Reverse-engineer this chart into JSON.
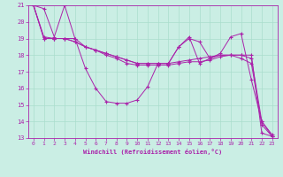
{
  "xlabel": "Windchill (Refroidissement éolien,°C)",
  "xlim": [
    -0.5,
    23.5
  ],
  "ylim": [
    13,
    21
  ],
  "yticks": [
    13,
    14,
    15,
    16,
    17,
    18,
    19,
    20,
    21
  ],
  "xticks": [
    0,
    1,
    2,
    3,
    4,
    5,
    6,
    7,
    8,
    9,
    10,
    11,
    12,
    13,
    14,
    15,
    16,
    17,
    18,
    19,
    20,
    21,
    22,
    23
  ],
  "bg_color": "#caeee4",
  "line_color": "#aa22aa",
  "grid_color": "#aaddcc",
  "series": [
    [
      21.0,
      20.8,
      19.1,
      21.0,
      19.0,
      17.2,
      16.0,
      15.2,
      15.1,
      15.1,
      15.3,
      16.1,
      17.5,
      17.5,
      18.5,
      19.1,
      17.5,
      17.8,
      18.1,
      19.1,
      19.3,
      16.5,
      14.0,
      13.2
    ],
    [
      21.0,
      19.1,
      19.0,
      19.0,
      19.0,
      18.5,
      18.3,
      18.0,
      17.8,
      17.5,
      17.4,
      17.4,
      17.4,
      17.4,
      17.5,
      17.6,
      17.6,
      17.7,
      17.9,
      18.0,
      18.0,
      18.0,
      13.3,
      13.1
    ],
    [
      21.0,
      19.0,
      19.0,
      19.0,
      18.8,
      18.5,
      18.3,
      18.1,
      17.9,
      17.7,
      17.5,
      17.5,
      17.5,
      17.5,
      17.6,
      17.7,
      17.8,
      17.9,
      18.0,
      18.0,
      18.0,
      17.8,
      14.0,
      13.1
    ],
    [
      21.0,
      19.0,
      19.0,
      19.0,
      18.8,
      18.5,
      18.3,
      18.1,
      17.9,
      17.7,
      17.5,
      17.5,
      17.5,
      17.5,
      18.5,
      19.0,
      18.8,
      17.8,
      18.0,
      18.0,
      17.8,
      17.5,
      13.8,
      13.1
    ]
  ]
}
